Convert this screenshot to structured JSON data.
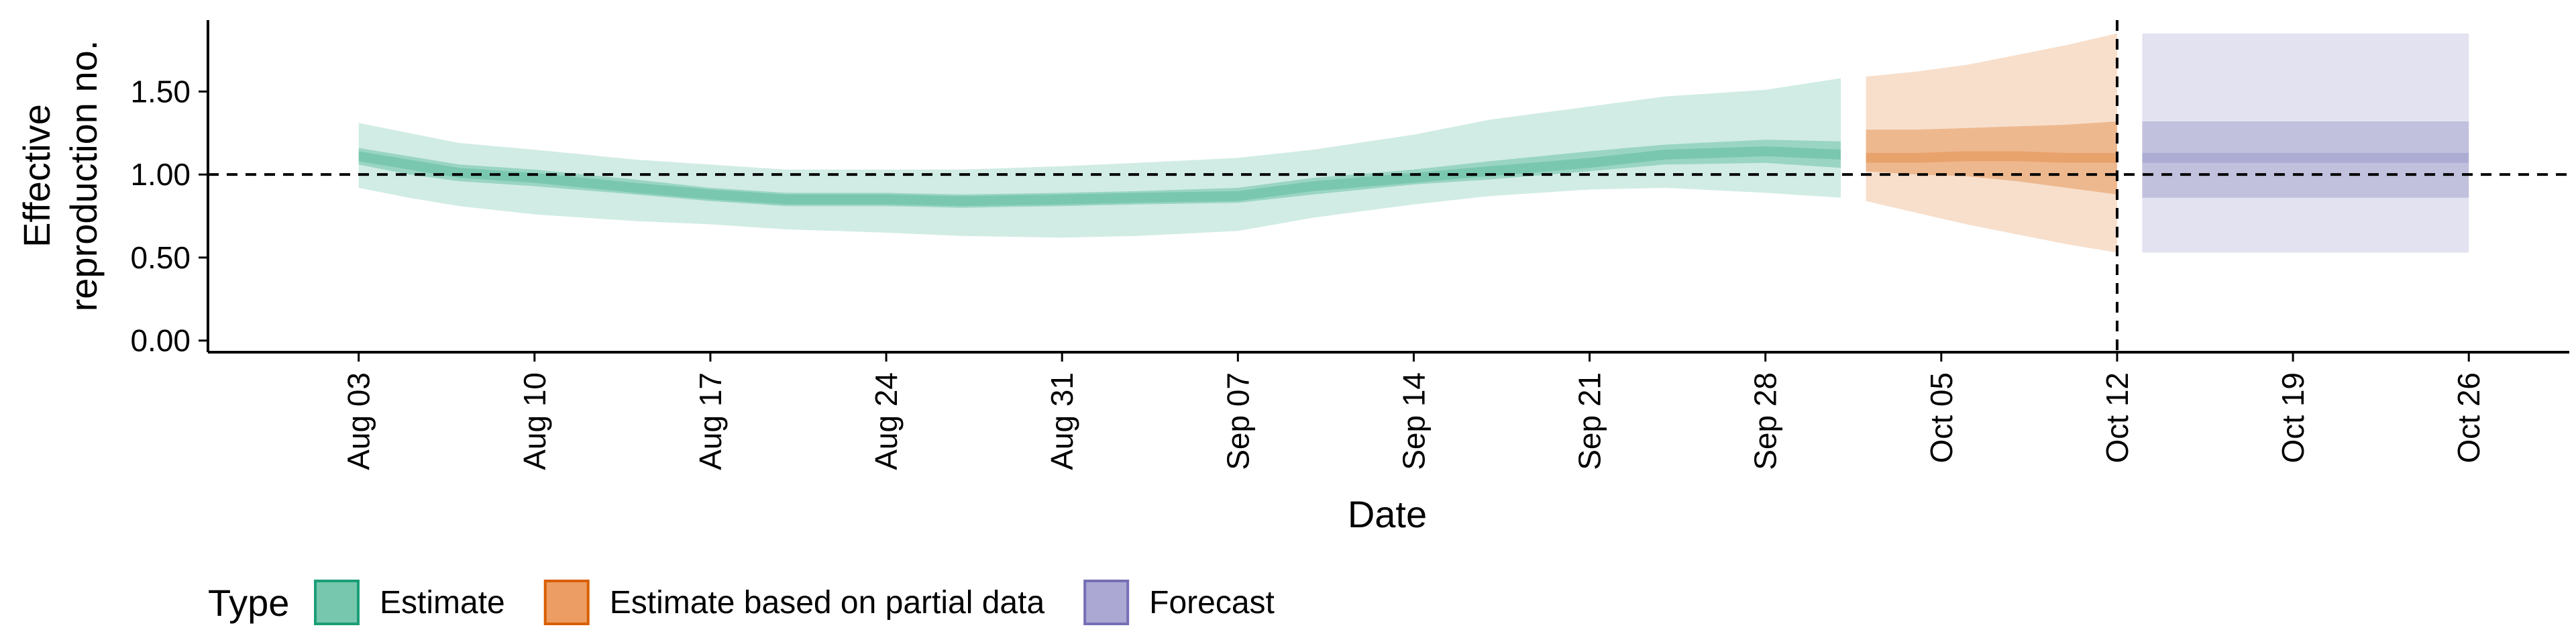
{
  "chart_data": {
    "type": "area",
    "title": "",
    "xlabel": "Date",
    "ylabel": [
      "Effective",
      "reproduction no."
    ],
    "ylim": [
      -0.07,
      1.93
    ],
    "x_start": "2020-07-28",
    "x_end": "2020-10-30",
    "x_ticks": [
      {
        "date": "2020-08-03",
        "label": "Aug 03"
      },
      {
        "date": "2020-08-10",
        "label": "Aug 10"
      },
      {
        "date": "2020-08-17",
        "label": "Aug 17"
      },
      {
        "date": "2020-08-24",
        "label": "Aug 24"
      },
      {
        "date": "2020-08-31",
        "label": "Aug 31"
      },
      {
        "date": "2020-09-07",
        "label": "Sep 07"
      },
      {
        "date": "2020-09-14",
        "label": "Sep 14"
      },
      {
        "date": "2020-09-21",
        "label": "Sep 21"
      },
      {
        "date": "2020-09-28",
        "label": "Sep 28"
      },
      {
        "date": "2020-10-05",
        "label": "Oct 05"
      },
      {
        "date": "2020-10-12",
        "label": "Oct 12"
      },
      {
        "date": "2020-10-19",
        "label": "Oct 19"
      },
      {
        "date": "2020-10-26",
        "label": "Oct 26"
      }
    ],
    "y_ticks": [
      0.0,
      0.5,
      1.0,
      1.5
    ],
    "y_tick_labels": [
      "0.00",
      "0.50",
      "1.00",
      "1.50"
    ],
    "reference_hline": 1.0,
    "reference_vline": "2020-10-12",
    "legend": {
      "title": "Type",
      "position": "bottom",
      "items": [
        {
          "label": "Estimate",
          "fill": "#76c7ad",
          "stroke": "#1b9e77"
        },
        {
          "label": "Estimate based on partial data",
          "fill": "#ec9d63",
          "stroke": "#d95f02"
        },
        {
          "label": "Forecast",
          "fill": "#aba8d4",
          "stroke": "#7570b3"
        }
      ]
    },
    "series": [
      {
        "name": "Estimate",
        "colors": {
          "outer": "#1b9e77",
          "inner": "#1b9e77",
          "median": "#1b9e77"
        },
        "dates": [
          "2020-08-03",
          "2020-08-05",
          "2020-08-07",
          "2020-08-10",
          "2020-08-14",
          "2020-08-17",
          "2020-08-20",
          "2020-08-24",
          "2020-08-27",
          "2020-08-31",
          "2020-09-03",
          "2020-09-07",
          "2020-09-10",
          "2020-09-14",
          "2020-09-17",
          "2020-09-21",
          "2020-09-24",
          "2020-09-28",
          "2020-10-01"
        ],
        "median": [
          1.11,
          1.06,
          1.01,
          0.98,
          0.92,
          0.88,
          0.85,
          0.85,
          0.84,
          0.85,
          0.86,
          0.87,
          0.93,
          0.98,
          1.02,
          1.07,
          1.12,
          1.14,
          1.12
        ],
        "lower_50": [
          1.06,
          1.0,
          0.96,
          0.93,
          0.88,
          0.84,
          0.81,
          0.81,
          0.8,
          0.81,
          0.82,
          0.83,
          0.88,
          0.94,
          0.97,
          1.02,
          1.06,
          1.07,
          1.04
        ],
        "upper_50": [
          1.16,
          1.11,
          1.06,
          1.03,
          0.97,
          0.92,
          0.89,
          0.89,
          0.88,
          0.89,
          0.9,
          0.92,
          0.98,
          1.03,
          1.08,
          1.14,
          1.18,
          1.21,
          1.2
        ],
        "lower_90": [
          0.92,
          0.86,
          0.81,
          0.76,
          0.72,
          0.7,
          0.67,
          0.65,
          0.63,
          0.62,
          0.63,
          0.66,
          0.74,
          0.82,
          0.87,
          0.91,
          0.92,
          0.89,
          0.86
        ],
        "upper_90": [
          1.31,
          1.25,
          1.19,
          1.15,
          1.09,
          1.06,
          1.03,
          1.03,
          1.03,
          1.05,
          1.07,
          1.1,
          1.15,
          1.24,
          1.33,
          1.41,
          1.47,
          1.51,
          1.58
        ]
      },
      {
        "name": "Estimate based on partial data",
        "colors": {
          "outer": "#d95f02",
          "inner": "#d95f02",
          "median": "#d95f02"
        },
        "dates": [
          "2020-10-02",
          "2020-10-04",
          "2020-10-06",
          "2020-10-08",
          "2020-10-10",
          "2020-10-12"
        ],
        "median": [
          1.1,
          1.1,
          1.11,
          1.11,
          1.1,
          1.1
        ],
        "lower_50": [
          1.02,
          1.0,
          0.99,
          0.96,
          0.92,
          0.88
        ],
        "upper_50": [
          1.27,
          1.27,
          1.28,
          1.29,
          1.3,
          1.32
        ],
        "lower_90": [
          0.84,
          0.77,
          0.7,
          0.64,
          0.58,
          0.53
        ],
        "upper_90": [
          1.59,
          1.62,
          1.66,
          1.72,
          1.78,
          1.85
        ]
      },
      {
        "name": "Forecast",
        "colors": {
          "outer": "#7570b3",
          "inner": "#7570b3",
          "median": "#7570b3"
        },
        "dates": [
          "2020-10-13",
          "2020-10-26"
        ],
        "median": [
          1.1,
          1.1
        ],
        "lower_50": [
          0.86,
          0.86
        ],
        "upper_50": [
          1.32,
          1.32
        ],
        "lower_90": [
          0.53,
          0.53
        ],
        "upper_90": [
          1.85,
          1.85
        ]
      }
    ]
  }
}
